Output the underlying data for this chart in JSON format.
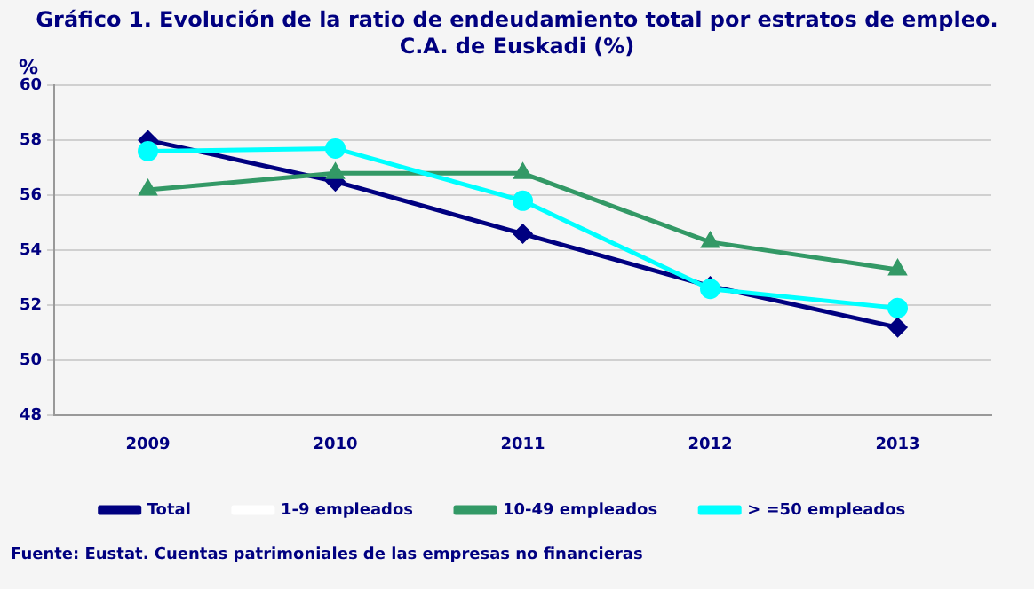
{
  "chart_data": {
    "type": "line",
    "title": "Gráfico 1. Evolución de la ratio de endeudamiento total por estratos de empleo.\nC.A. de Euskadi (%)",
    "ylabel": "%",
    "categories": [
      "2009",
      "2010",
      "2011",
      "2012",
      "2013"
    ],
    "series": [
      {
        "name": "Total",
        "color": "#000080",
        "marker": "diamond",
        "values": [
          58.0,
          56.5,
          54.6,
          52.7,
          51.2
        ]
      },
      {
        "name": "1-9 empleados",
        "color": "#ffffff",
        "marker": "none",
        "values": [
          null,
          null,
          null,
          null,
          null
        ]
      },
      {
        "name": "10-49 empleados",
        "color": "#339966",
        "marker": "triangle",
        "values": [
          56.2,
          56.8,
          56.8,
          54.3,
          53.3
        ]
      },
      {
        "name": "> =50 empleados",
        "color": "#00ffff",
        "marker": "circle",
        "values": [
          57.6,
          57.7,
          55.8,
          52.6,
          51.9
        ]
      }
    ],
    "ylim": [
      48,
      60
    ],
    "yticks": [
      48,
      50,
      52,
      54,
      56,
      58,
      60
    ],
    "grid": "y",
    "legend": "bottom",
    "line_style": "solid",
    "annotations": [
      "Fuente: Eustat. Cuentas patrimoniales de las empresas no financieras"
    ]
  }
}
